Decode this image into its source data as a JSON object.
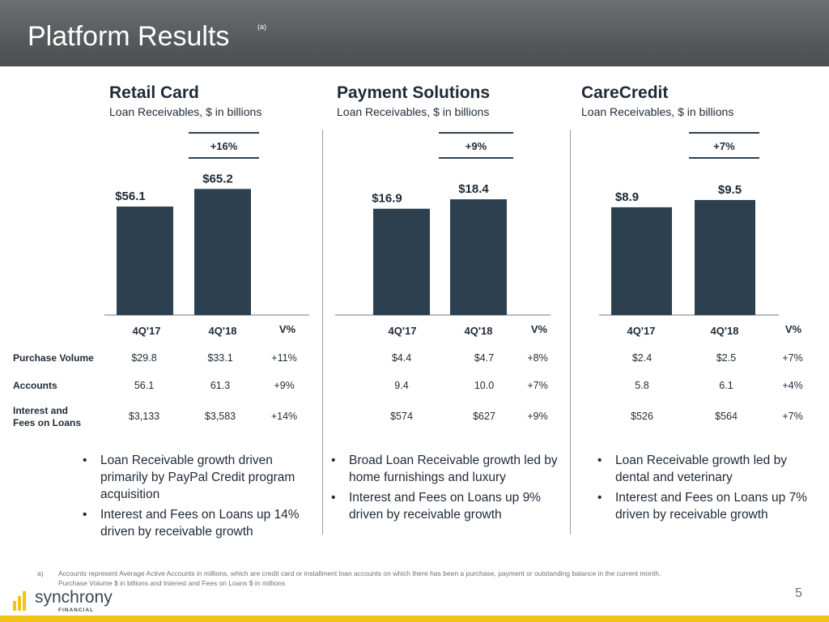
{
  "header": {
    "title": "Platform Results",
    "title_note": "(a)"
  },
  "panels": [
    {
      "title": "Retail Card",
      "subtitle": "Loan Receivables, $ in billions",
      "growth": "+16%"
    },
    {
      "title": "Payment Solutions",
      "subtitle": "Loan Receivables, $ in billions",
      "growth": "+9%"
    },
    {
      "title": "CareCredit",
      "subtitle": "Loan Receivables, $ in billions",
      "growth": "+7%"
    }
  ],
  "chart_data": [
    {
      "type": "bar",
      "title": "Retail Card",
      "subtitle": "Loan Receivables, $ in billions",
      "categories": [
        "4Q'17",
        "4Q'18"
      ],
      "values": [
        56.1,
        65.2
      ],
      "value_labels": [
        "$56.1",
        "$65.2"
      ],
      "growth_label": "+16%"
    },
    {
      "type": "bar",
      "title": "Payment Solutions",
      "subtitle": "Loan Receivables, $ in billions",
      "categories": [
        "4Q'17",
        "4Q'18"
      ],
      "values": [
        16.9,
        18.4
      ],
      "value_labels": [
        "$16.9",
        "$18.4"
      ],
      "growth_label": "+9%"
    },
    {
      "type": "bar",
      "title": "CareCredit",
      "subtitle": "Loan Receivables, $ in billions",
      "categories": [
        "4Q'17",
        "4Q'18"
      ],
      "values": [
        8.9,
        9.5
      ],
      "value_labels": [
        "$8.9",
        "$9.5"
      ],
      "growth_label": "+7%"
    }
  ],
  "table": {
    "column_headers": [
      "4Q'17",
      "4Q'18",
      "V%"
    ],
    "rows": [
      {
        "label": "Purchase Volume",
        "cells": [
          "$29.8",
          "$33.1",
          "+11%",
          "$4.4",
          "$4.7",
          "+8%",
          "$2.4",
          "$2.5",
          "+7%"
        ]
      },
      {
        "label": "Accounts",
        "cells": [
          "56.1",
          "61.3",
          "+9%",
          "9.4",
          "10.0",
          "+7%",
          "5.8",
          "6.1",
          "+4%"
        ]
      },
      {
        "label_line1": "Interest and",
        "label_line2": "Fees on Loans",
        "cells": [
          "$3,133",
          "$3,583",
          "+14%",
          "$574",
          "$627",
          "+9%",
          "$526",
          "$564",
          "+7%"
        ]
      }
    ]
  },
  "bullets": [
    [
      "Loan Receivable growth driven primarily by PayPal Credit program acquisition",
      "Interest and Fees on Loans up 14% driven by receivable growth"
    ],
    [
      "Broad Loan Receivable growth led by home furnishings and luxury",
      "Interest and Fees on Loans up 9% driven by receivable growth"
    ],
    [
      "Loan Receivable growth led by dental and veterinary",
      "Interest and Fees on Loans up 7% driven by receivable growth"
    ]
  ],
  "footnote": {
    "mark": "a)",
    "line1": "Accounts represent Average Active Accounts in millions, which are credit card or installment loan accounts on which there has been a purchase, payment or outstanding balance in the current month.",
    "line2": "Purchase Volume $ in billions and Interest and Fees on Loans $ in millions"
  },
  "logo": {
    "name": "synchrony",
    "sub": "FINANCIAL"
  },
  "page_number": "5",
  "colors": {
    "bar": "#2c4050",
    "header_bg": "#5a5b5e",
    "footer_accent": "#f2c418"
  }
}
